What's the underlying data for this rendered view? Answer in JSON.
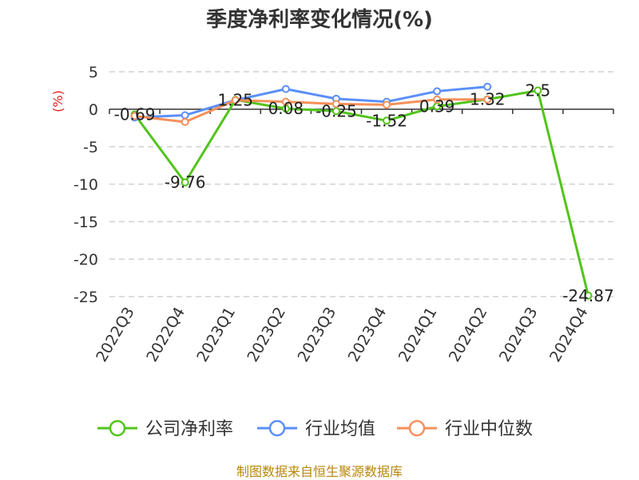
{
  "chart_data": {
    "type": "line",
    "title": "季度净利率变化情况(%)",
    "ylabel": "(%)",
    "categories": [
      "2022Q3",
      "2022Q4",
      "2023Q1",
      "2023Q2",
      "2023Q3",
      "2023Q4",
      "2024Q1",
      "2024Q2",
      "2024Q3",
      "2024Q4"
    ],
    "ylim": [
      -25,
      5
    ],
    "yticks": [
      5,
      0,
      -5,
      -10,
      -15,
      -20,
      -25
    ],
    "grid": true,
    "legend_position": "bottom",
    "series": [
      {
        "name": "公司净利率",
        "color": "#52c41a",
        "values": [
          -0.69,
          -9.76,
          1.25,
          0.08,
          -0.25,
          -1.52,
          0.39,
          1.32,
          2.5,
          -24.87
        ],
        "labels": [
          "-0.69",
          "-9.76",
          "1.25",
          "0.08",
          "-0.25",
          "-1.52",
          "0.39",
          "1.32",
          "2.5",
          "-24.87"
        ]
      },
      {
        "name": "行业均值",
        "color": "#5b8ff9",
        "values": [
          -1.1,
          -0.8,
          1.2,
          2.7,
          1.4,
          1.0,
          2.4,
          3.0,
          null,
          null
        ]
      },
      {
        "name": "行业中位数",
        "color": "#f6905a",
        "values": [
          -0.9,
          -1.7,
          1.2,
          1.0,
          0.7,
          0.6,
          1.3,
          1.3,
          null,
          null
        ]
      }
    ]
  },
  "source": "制图数据来自恒生聚源数据库"
}
